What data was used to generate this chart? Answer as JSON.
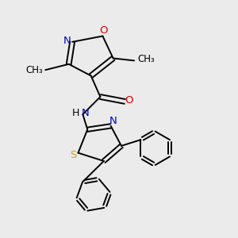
{
  "bg_color": "#ebebeb",
  "bond_color": "#000000",
  "N_color": "#0000cc",
  "O_color": "#dd0000",
  "S_color": "#ccaa00",
  "figsize": [
    3.0,
    3.0
  ],
  "dpi": 100,
  "xlim": [
    0,
    10
  ],
  "ylim": [
    0,
    10
  ]
}
